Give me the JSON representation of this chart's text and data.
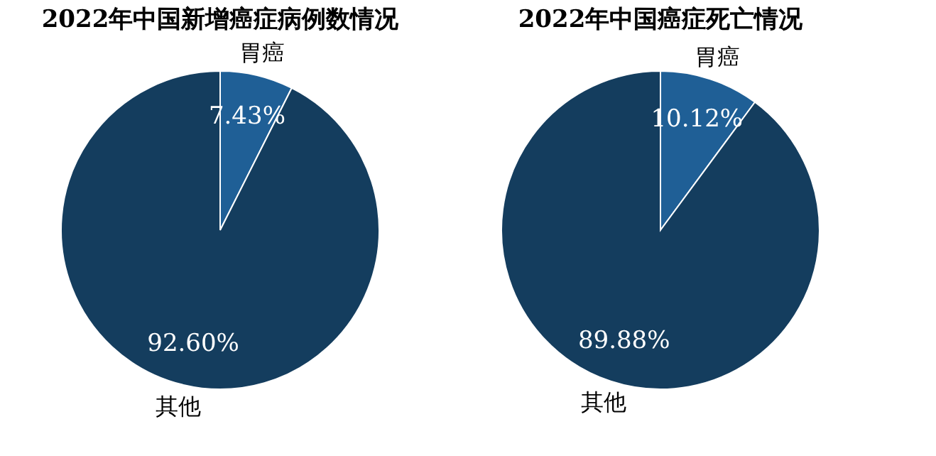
{
  "chart_data": [
    {
      "type": "pie",
      "title": "2022年中国新增癌症病例数情况",
      "categories": [
        "胃癌",
        "其他"
      ],
      "values": [
        7.43,
        92.6
      ],
      "colors": [
        "#1f5f96",
        "#143d5e"
      ],
      "value_labels": [
        "7.43%",
        "92.60%"
      ],
      "legend": false
    },
    {
      "type": "pie",
      "title": "2022年中国癌症死亡情况",
      "categories": [
        "胃癌",
        "其他"
      ],
      "values": [
        10.12,
        89.88
      ],
      "colors": [
        "#1f5f96",
        "#143d5e"
      ],
      "value_labels": [
        "10.12%",
        "89.88%"
      ],
      "legend": false
    }
  ]
}
